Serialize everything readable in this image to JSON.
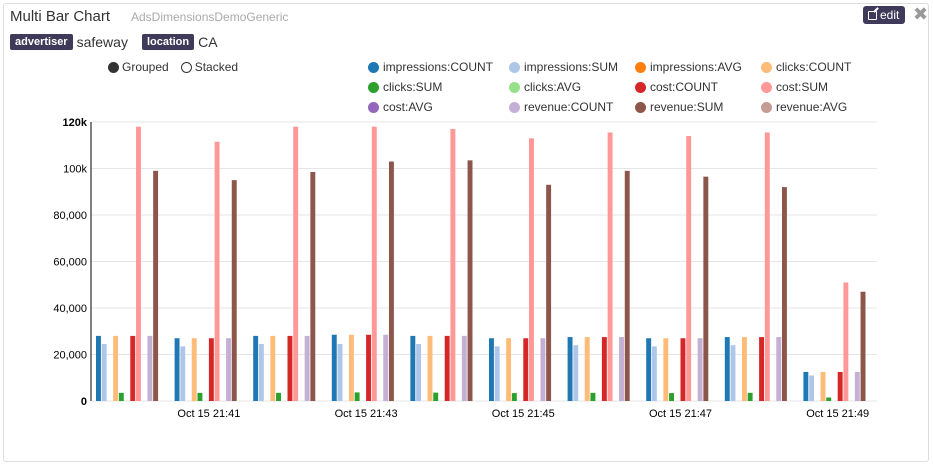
{
  "widget": {
    "title": "Multi Bar Chart",
    "subtitle": "AdsDimensionsDemoGeneric",
    "edit_label": "edit"
  },
  "filters": [
    {
      "tag": "advertiser",
      "value": "safeway"
    },
    {
      "tag": "location",
      "value": "CA"
    }
  ],
  "controls": {
    "grouped_label": "Grouped",
    "stacked_label": "Stacked",
    "selected": "grouped"
  },
  "chart_data": {
    "type": "bar",
    "y_tick_labels": [
      "0",
      "20,000",
      "40,000",
      "60,000",
      "80,000",
      "100k",
      "120k"
    ],
    "y_ticks": [
      0,
      20000,
      40000,
      60000,
      80000,
      100000,
      120000
    ],
    "ylim": [
      0,
      120000
    ],
    "x_tick_labels": [
      "Oct 15 21:41",
      "Oct 15 21:43",
      "Oct 15 21:45",
      "Oct 15 21:47",
      "Oct 15 21:49"
    ],
    "x_tick_groups": [
      1,
      3,
      5,
      7,
      9
    ],
    "group_count": 10,
    "grid": true,
    "legend_position": "top-right",
    "series": [
      {
        "name": "impressions:COUNT",
        "color": "#1f77b4",
        "values": [
          28000,
          27000,
          28000,
          28500,
          28000,
          27000,
          27500,
          27000,
          27500,
          12500
        ]
      },
      {
        "name": "impressions:SUM",
        "color": "#aec7e8",
        "values": [
          24500,
          23500,
          24500,
          24500,
          24500,
          23500,
          24000,
          23500,
          24000,
          11000
        ]
      },
      {
        "name": "impressions:AVG",
        "color": "#ff7f0e",
        "values": [
          0,
          0,
          0,
          0,
          0,
          0,
          0,
          0,
          0,
          0
        ]
      },
      {
        "name": "clicks:COUNT",
        "color": "#ffbb78",
        "values": [
          28000,
          27000,
          28000,
          28500,
          28000,
          27000,
          27500,
          27000,
          27500,
          12500
        ]
      },
      {
        "name": "clicks:SUM",
        "color": "#2ca02c",
        "values": [
          3500,
          3500,
          3500,
          3700,
          3600,
          3400,
          3500,
          3400,
          3500,
          1500
        ]
      },
      {
        "name": "clicks:AVG",
        "color": "#98df8a",
        "values": [
          0,
          0,
          0,
          0,
          0,
          0,
          0,
          0,
          0,
          0
        ]
      },
      {
        "name": "cost:COUNT",
        "color": "#d62728",
        "values": [
          28000,
          27000,
          28000,
          28500,
          28000,
          27000,
          27500,
          27000,
          27500,
          12500
        ]
      },
      {
        "name": "cost:SUM",
        "color": "#ff9896",
        "values": [
          118000,
          111500,
          118000,
          118000,
          117000,
          113000,
          115500,
          114000,
          115500,
          51000
        ]
      },
      {
        "name": "cost:AVG",
        "color": "#9467bd",
        "values": [
          0,
          0,
          0,
          0,
          0,
          0,
          0,
          0,
          0,
          0
        ]
      },
      {
        "name": "revenue:COUNT",
        "color": "#c5b0d5",
        "values": [
          28000,
          27000,
          28000,
          28500,
          28000,
          27000,
          27500,
          27000,
          27500,
          12500
        ]
      },
      {
        "name": "revenue:SUM",
        "color": "#8c564b",
        "values": [
          99000,
          95000,
          98500,
          103000,
          103500,
          93000,
          99000,
          96500,
          92000,
          47000
        ]
      },
      {
        "name": "revenue:AVG",
        "color": "#c49c94",
        "values": [
          0,
          0,
          0,
          0,
          0,
          0,
          0,
          0,
          0,
          0
        ]
      }
    ]
  }
}
